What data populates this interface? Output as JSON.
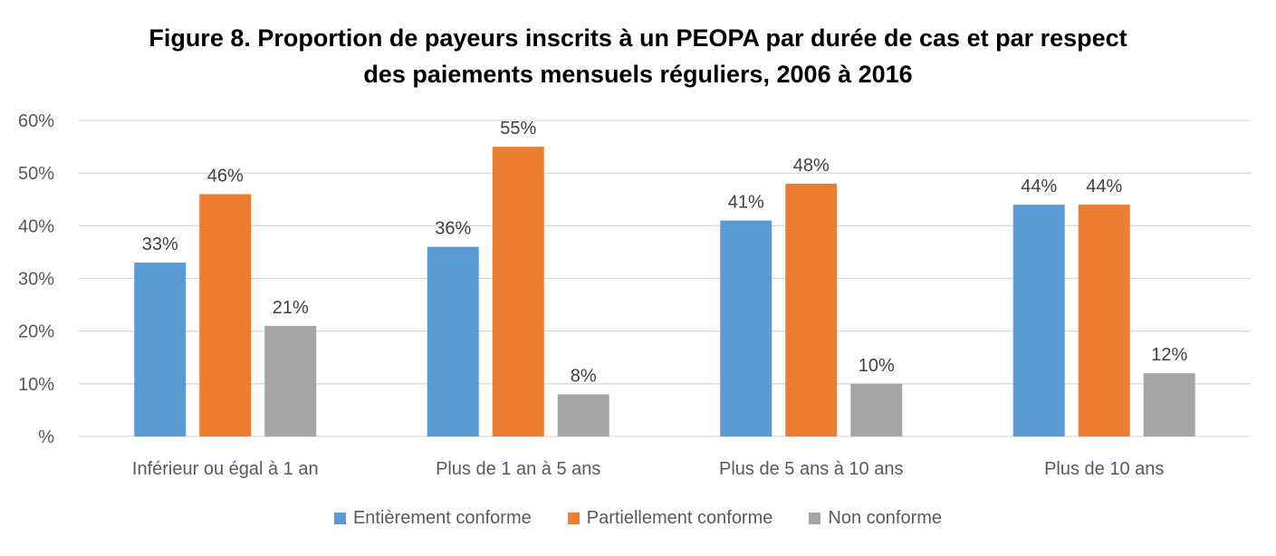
{
  "chart_data": {
    "type": "bar",
    "title": "Figure 8. Proportion de payeurs inscrits à un PEOPA par durée de cas et par respect des paiements mensuels réguliers, 2006 à 2016",
    "title_lines": [
      "Figure 8. Proportion de payeurs inscrits à un PEOPA par durée de cas et par respect",
      "des paiements mensuels réguliers, 2006 à 2016"
    ],
    "xlabel": "",
    "ylabel": "",
    "categories": [
      "Inférieur ou égal à 1 an",
      "Plus de 1 an à 5 ans",
      "Plus de 5 ans à 10 ans",
      "Plus de 10 ans"
    ],
    "series": [
      {
        "name": "Entièrement conforme",
        "color": "#5B9BD5",
        "values": [
          33,
          36,
          41,
          44
        ],
        "labels": [
          "33%",
          "36%",
          "41%",
          "44%"
        ]
      },
      {
        "name": "Partiellement conforme",
        "color": "#ED7D31",
        "values": [
          46,
          55,
          48,
          44
        ],
        "labels": [
          "46%",
          "55%",
          "48%",
          "44%"
        ]
      },
      {
        "name": "Non conforme",
        "color": "#A5A5A5",
        "values": [
          21,
          8,
          10,
          12
        ],
        "labels": [
          "21%",
          "8%",
          "10%",
          "12%"
        ]
      }
    ],
    "ylim": [
      0,
      60
    ],
    "yticks": [
      "%",
      "10%",
      "20%",
      "30%",
      "40%",
      "50%",
      "60%"
    ],
    "grid": true,
    "legend_position": "bottom"
  }
}
